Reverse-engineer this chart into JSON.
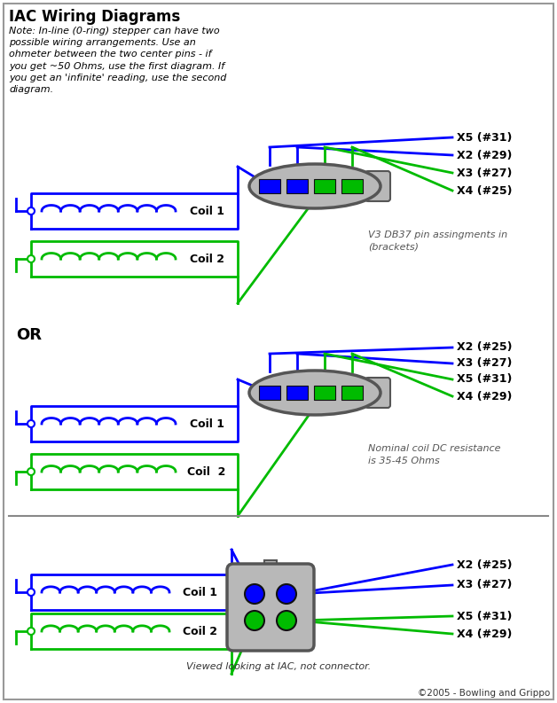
{
  "title": "IAC Wiring Diagrams",
  "bg_color": "#ffffff",
  "blue": "#0000ff",
  "green": "#00bb00",
  "black": "#000000",
  "gray": "#bbbbbb",
  "note_text": "Note: In-line (0-ring) stepper can have two\npossible wiring arrangements. Use an\nohmeter between the two center pins - if\nyou get ~50 Ohms, use the first diagram. If\nyou get an 'infinite' reading, use the second\ndiagram.",
  "v3_text": "V3 DB37 pin assingments in\n(brackets)",
  "nominal_text": "Nominal coil DC resistance\nis 35-45 Ohms",
  "viewed_text": "Viewed looking at IAC, not connector.",
  "copyright_text": "©2005 - Bowling and Grippo",
  "diagram1_labels": [
    "X5 (#31)",
    "X2 (#29)",
    "X3 (#27)",
    "X4 (#25)"
  ],
  "diagram1_label_colors": [
    "blue",
    "blue",
    "green",
    "green"
  ],
  "diagram2_labels": [
    "X2 (#25)",
    "X3 (#27)",
    "X5 (#31)",
    "X4 (#29)"
  ],
  "diagram2_label_colors": [
    "blue",
    "blue",
    "green",
    "green"
  ],
  "diagram3_labels": [
    "X2 (#25)",
    "X3 (#27)",
    "X5 (#31)",
    "X4 (#29)"
  ],
  "diagram3_label_colors": [
    "blue",
    "blue",
    "green",
    "green"
  ]
}
